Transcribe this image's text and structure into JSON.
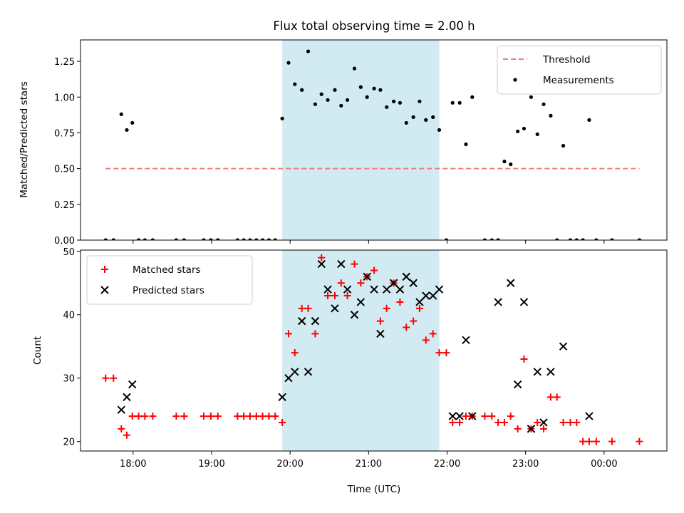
{
  "chart_data": [
    {
      "type": "scatter",
      "title": "Flux total observing time = 2.00 h",
      "xlabel": "",
      "ylabel": "Matched/Predicted stars",
      "ylim": [
        0,
        1.4
      ],
      "xlim_hours": [
        17.33,
        24.8
      ],
      "yticks": [
        0.0,
        0.25,
        0.5,
        0.75,
        1.0,
        1.25
      ],
      "ytick_labels": [
        "0.00",
        "0.25",
        "0.50",
        "0.75",
        "1.00",
        "1.25"
      ],
      "shaded_region_hours": [
        19.9,
        21.9
      ],
      "shaded_color": "#add8e6",
      "legend": {
        "placement": "top-right",
        "entries": [
          "Threshold",
          "Measurements"
        ]
      },
      "threshold": {
        "name": "Threshold",
        "value": 0.5,
        "x_range_hours": [
          17.65,
          24.45
        ],
        "color": "#f08080"
      },
      "series": [
        {
          "name": "Measurements",
          "color": "#000000",
          "x_hours": [
            17.65,
            17.75,
            17.85,
            17.92,
            17.99,
            18.07,
            18.15,
            18.25,
            18.55,
            18.65,
            18.9,
            18.99,
            19.08,
            19.33,
            19.41,
            19.49,
            19.57,
            19.65,
            19.73,
            19.81,
            19.9,
            19.98,
            20.06,
            20.15,
            20.23,
            20.32,
            20.4,
            20.48,
            20.57,
            20.65,
            20.73,
            20.82,
            20.9,
            20.98,
            21.07,
            21.15,
            21.23,
            21.32,
            21.4,
            21.48,
            21.57,
            21.65,
            21.73,
            21.82,
            21.9,
            21.99,
            22.07,
            22.16,
            22.24,
            22.32,
            22.48,
            22.57,
            22.65,
            22.73,
            22.81,
            22.9,
            22.98,
            23.07,
            23.15,
            23.23,
            23.32,
            23.4,
            23.48,
            23.57,
            23.65,
            23.73,
            23.81,
            23.9,
            24.1,
            24.45
          ],
          "y": [
            0,
            0,
            0.88,
            0.77,
            0.82,
            0,
            0,
            0,
            0,
            0,
            0,
            0,
            0,
            0,
            0,
            0,
            0,
            0,
            0,
            0,
            0.85,
            1.24,
            1.09,
            1.05,
            1.32,
            0.95,
            1.02,
            0.98,
            1.05,
            0.94,
            0.98,
            1.2,
            1.07,
            1.0,
            1.06,
            1.05,
            0.93,
            0.97,
            0.96,
            0.82,
            0.86,
            0.97,
            0.84,
            0.86,
            0.77,
            0,
            0.96,
            0.96,
            0.67,
            1.0,
            0,
            0,
            0,
            0.55,
            0.53,
            0.76,
            0.78,
            1.0,
            0.74,
            0.95,
            0.87,
            0,
            0.66,
            0,
            0,
            0,
            0.84,
            0,
            0,
            0
          ]
        }
      ]
    },
    {
      "type": "scatter",
      "title": "",
      "xlabel": "Time (UTC)",
      "ylabel": "Count",
      "ylim": [
        18.5,
        50.2
      ],
      "xlim_hours": [
        17.33,
        24.8
      ],
      "yticks": [
        20,
        30,
        40,
        50
      ],
      "ytick_labels": [
        "20",
        "30",
        "40",
        "50"
      ],
      "xticks_hours": [
        18,
        19,
        20,
        21,
        22,
        23,
        24
      ],
      "xtick_labels": [
        "18:00",
        "19:00",
        "20:00",
        "21:00",
        "22:00",
        "23:00",
        "00:00"
      ],
      "shaded_region_hours": [
        19.9,
        21.9
      ],
      "shaded_color": "#add8e6",
      "legend": {
        "placement": "top-left",
        "entries": [
          "Matched stars",
          "Predicted stars"
        ]
      },
      "series": [
        {
          "name": "Matched stars",
          "marker": "plus",
          "color": "#ff0000",
          "x_hours": [
            17.65,
            17.75,
            17.85,
            17.92,
            17.99,
            18.07,
            18.15,
            18.25,
            18.55,
            18.65,
            18.9,
            18.99,
            19.08,
            19.33,
            19.41,
            19.49,
            19.57,
            19.65,
            19.73,
            19.81,
            19.9,
            19.98,
            20.06,
            20.15,
            20.23,
            20.32,
            20.4,
            20.48,
            20.57,
            20.65,
            20.73,
            20.82,
            20.9,
            20.98,
            21.07,
            21.15,
            21.23,
            21.32,
            21.4,
            21.48,
            21.57,
            21.65,
            21.73,
            21.82,
            21.9,
            21.99,
            22.07,
            22.16,
            22.24,
            22.32,
            22.48,
            22.57,
            22.65,
            22.73,
            22.81,
            22.9,
            22.98,
            23.07,
            23.15,
            23.23,
            23.32,
            23.4,
            23.48,
            23.57,
            23.65,
            23.73,
            23.81,
            23.9,
            24.1,
            24.45
          ],
          "y": [
            30,
            30,
            22,
            21,
            24,
            24,
            24,
            24,
            24,
            24,
            24,
            24,
            24,
            24,
            24,
            24,
            24,
            24,
            24,
            24,
            23,
            37,
            34,
            41,
            41,
            37,
            49,
            43,
            43,
            45,
            43,
            48,
            45,
            46,
            47,
            39,
            41,
            45,
            42,
            38,
            39,
            41,
            36,
            37,
            34,
            34,
            23,
            23,
            24,
            24,
            24,
            24,
            23,
            23,
            24,
            22,
            33,
            22,
            23,
            22,
            27,
            27,
            23,
            23,
            23,
            20,
            20,
            20,
            20,
            20
          ]
        },
        {
          "name": "Predicted stars",
          "marker": "x",
          "color": "#000000",
          "x_hours": [
            17.85,
            17.92,
            17.99,
            19.9,
            19.98,
            20.06,
            20.15,
            20.23,
            20.32,
            20.4,
            20.48,
            20.57,
            20.65,
            20.73,
            20.82,
            20.9,
            20.98,
            21.07,
            21.15,
            21.23,
            21.32,
            21.4,
            21.48,
            21.57,
            21.65,
            21.73,
            21.82,
            21.9,
            22.07,
            22.16,
            22.24,
            22.32,
            22.65,
            22.81,
            22.9,
            22.98,
            23.07,
            23.15,
            23.23,
            23.32,
            23.48,
            23.81
          ],
          "y": [
            25,
            27,
            29,
            27,
            30,
            31,
            39,
            31,
            39,
            48,
            44,
            41,
            48,
            44,
            40,
            42,
            46,
            44,
            37,
            44,
            45,
            44,
            46,
            45,
            42,
            43,
            43,
            44,
            24,
            24,
            36,
            24,
            42,
            45,
            29,
            42,
            22,
            31,
            23,
            31,
            35,
            24
          ]
        }
      ]
    }
  ]
}
